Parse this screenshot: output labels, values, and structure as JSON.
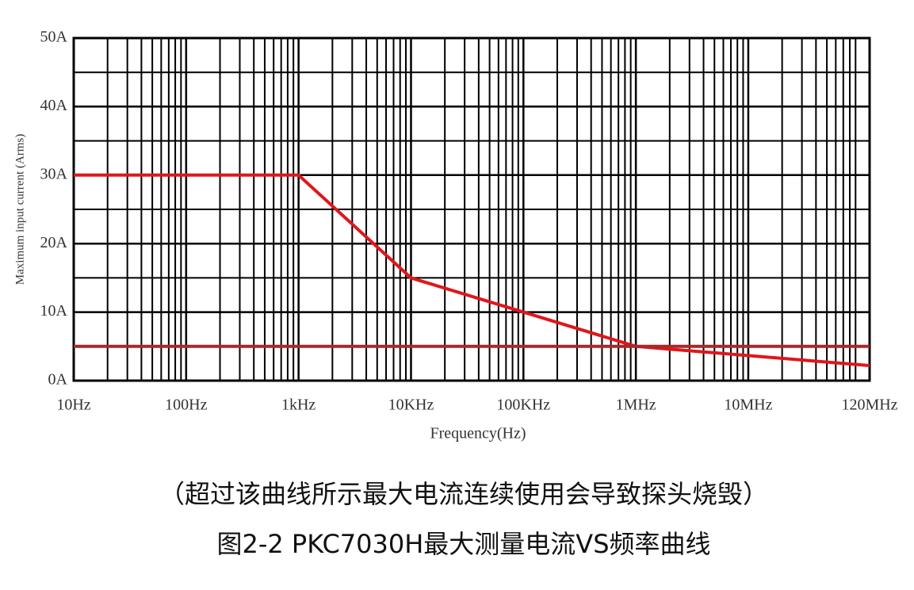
{
  "chart_data": {
    "type": "line",
    "x_scale": "log",
    "x_label": "Frequency(Hz)",
    "y_label": "Maximum input current (Arms)",
    "xlim": [
      10,
      120000000
    ],
    "ylim": [
      0,
      50
    ],
    "xticks": [
      {
        "value": 10,
        "label": "10Hz"
      },
      {
        "value": 100,
        "label": "100Hz"
      },
      {
        "value": 1000,
        "label": "1kHz"
      },
      {
        "value": 10000,
        "label": "10KHz"
      },
      {
        "value": 100000,
        "label": "100KHz"
      },
      {
        "value": 1000000,
        "label": "1MHz"
      },
      {
        "value": 10000000,
        "label": "10MHz"
      },
      {
        "value": 120000000,
        "label": "120MHz"
      }
    ],
    "yticks": [
      {
        "value": 0,
        "label": "0A"
      },
      {
        "value": 10,
        "label": "10A"
      },
      {
        "value": 20,
        "label": "20A"
      },
      {
        "value": 30,
        "label": "30A"
      },
      {
        "value": 40,
        "label": "40A"
      },
      {
        "value": 50,
        "label": "50A"
      }
    ],
    "grid": true,
    "minor_grid": true,
    "series": [
      {
        "color": "#e0161c",
        "x": [
          10,
          1000,
          10000,
          100000,
          1000000,
          120000000
        ],
        "values": [
          30,
          30,
          15,
          10,
          5,
          2.2
        ]
      },
      {
        "color": "#a8282c",
        "x": [
          10,
          120000000
        ],
        "values": [
          5,
          5
        ]
      }
    ],
    "note": "（超过该曲线所示最大电流连续使用会导致探头烧毁）",
    "caption": "图2-2 PKC7030H最大测量电流VS频率曲线"
  }
}
